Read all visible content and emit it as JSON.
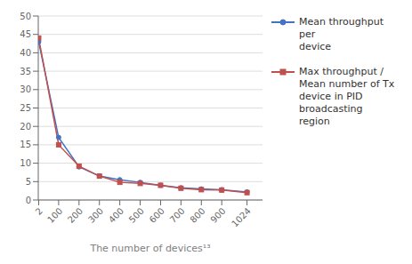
{
  "chart_data": {
    "type": "line",
    "x": [
      2,
      100,
      200,
      300,
      400,
      500,
      600,
      700,
      800,
      900,
      1024
    ],
    "series": [
      {
        "name": "Mean throughput per\ndevice",
        "color": "#4472C4",
        "marker": "circle",
        "values": [
          43,
          17,
          9,
          6.5,
          5.5,
          4.8,
          4.0,
          3.3,
          3.0,
          2.8,
          2.2
        ]
      },
      {
        "name": "Max throughput /\nMean number of Tx\ndevice in PID\nbroadcasting region",
        "color": "#C0504D",
        "marker": "square",
        "values": [
          44,
          15,
          9.2,
          6.5,
          4.8,
          4.5,
          4.0,
          3.2,
          2.8,
          2.7,
          2.0
        ]
      }
    ],
    "xlabel": "The number of devices¹³",
    "xlim": [
      0,
      1100
    ],
    "xticks": [
      2,
      100,
      200,
      300,
      400,
      500,
      600,
      700,
      800,
      900,
      1024
    ],
    "ylim": [
      0,
      50
    ],
    "yticks": [
      0,
      5,
      10,
      15,
      20,
      25,
      30,
      35,
      40,
      45,
      50
    ],
    "grid": "y",
    "legend": "right"
  }
}
